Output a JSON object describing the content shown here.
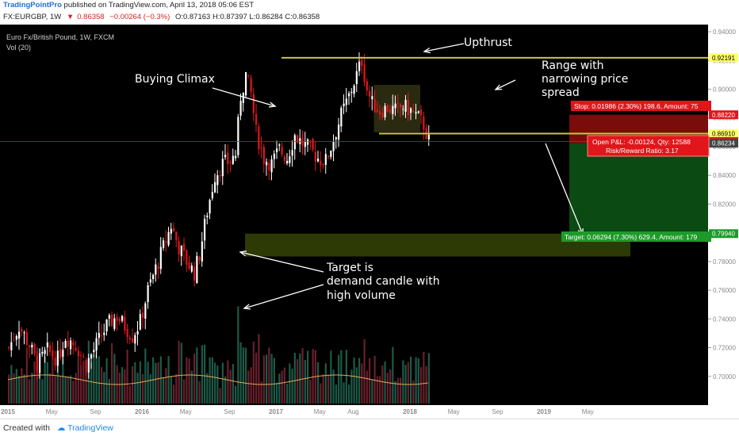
{
  "header": {
    "brand": "TradingPointPro",
    "published": "published on TradingView.com, April 13, 2018 05:06 EST",
    "symbol_line": "FX:EURGBP, 1W",
    "last": "0.86358",
    "change": "−0.00264 (−0.3%)",
    "ohlc": "O:0.87163 H:0.87397 L:0.86284 C:0.86358"
  },
  "footer": {
    "created_with": "Created with",
    "brand": "TradingView"
  },
  "legend": {
    "title": "Euro Fx/British Pound, 1W, FXCM",
    "vol": "Vol (20)"
  },
  "annotations": {
    "upthrust": "Upthrust",
    "buying_climax": "Buying Climax",
    "range": [
      "Range with",
      "narrowing price",
      "spread"
    ],
    "target": [
      "Target is",
      "demand candle with",
      "high volume"
    ]
  },
  "position": {
    "stop": "Stop: 0.01986 (2.30%) 198.6, Amount: 75",
    "pnl": "Open P&L: -0.00124, Qty: 12588",
    "rr": "Risk/Reward Ratio: 3.17",
    "target": "Target: 0.06294 (7.30%) 629.4, Amount: 179"
  },
  "colors": {
    "up": "#ffffff",
    "down": "#e0161b",
    "level": "#c8c83c",
    "stop_zone": "#7a0c0c",
    "target_zone": "#0b4a12",
    "vol_up": "#1d5a48",
    "vol_down": "#6a1f2c"
  },
  "chart_data": {
    "type": "candlestick",
    "price_axis": {
      "range": [
        0.68,
        0.945
      ],
      "ticks": [
        "0.94000",
        "0.92000",
        "0.90000",
        "0.88000",
        "0.86000",
        "0.84000",
        "0.82000",
        "0.80000",
        "0.78000",
        "0.76000",
        "0.74000",
        "0.72000",
        "0.70000"
      ],
      "tick_values": [
        0.94,
        0.92,
        0.9,
        0.88,
        0.86,
        0.84,
        0.82,
        0.8,
        0.78,
        0.76,
        0.74,
        0.72,
        0.7
      ]
    },
    "time_axis": {
      "labels": [
        "2015",
        "May",
        "Sep",
        "2016",
        "May",
        "Sep",
        "2017",
        "May",
        "Aug",
        "2018",
        "May",
        "Sep",
        "2019",
        "May"
      ],
      "positions": [
        0,
        17,
        34,
        52,
        69,
        86,
        104,
        121,
        134,
        156,
        173,
        190,
        208,
        225
      ]
    },
    "price_tags": [
      {
        "label": "0.92191",
        "value": 0.92191,
        "kind": "level"
      },
      {
        "label": "0.88220",
        "value": 0.8822,
        "kind": "stop"
      },
      {
        "label": "0.86910",
        "value": 0.8691,
        "kind": "level"
      },
      {
        "label": "0.86358",
        "value": 0.86358,
        "kind": "last"
      },
      {
        "label": "0.86234",
        "value": 0.86234,
        "kind": "entry"
      },
      {
        "label": "0.79940",
        "value": 0.7994,
        "kind": "target"
      }
    ],
    "levels": {
      "upthrust_high": 0.92191,
      "range_support": 0.8691,
      "entry": 0.86234,
      "stop": 0.8822,
      "target": 0.7994,
      "target_zone_low": 0.7835,
      "range_box": [
        0.87,
        0.903
      ]
    },
    "price_path": [
      [
        0,
        0.72
      ],
      [
        4,
        0.735
      ],
      [
        8,
        0.722
      ],
      [
        11,
        0.708
      ],
      [
        15,
        0.718
      ],
      [
        19,
        0.712
      ],
      [
        22,
        0.728
      ],
      [
        26,
        0.722
      ],
      [
        30,
        0.708
      ],
      [
        34,
        0.722
      ],
      [
        38,
        0.735
      ],
      [
        42,
        0.742
      ],
      [
        45,
        0.735
      ],
      [
        48,
        0.728
      ],
      [
        51,
        0.738
      ],
      [
        54,
        0.76
      ],
      [
        57,
        0.775
      ],
      [
        60,
        0.79
      ],
      [
        63,
        0.805
      ],
      [
        66,
        0.79
      ],
      [
        69,
        0.78
      ],
      [
        72,
        0.772
      ],
      [
        74,
        0.785
      ],
      [
        77,
        0.815
      ],
      [
        80,
        0.84
      ],
      [
        83,
        0.848
      ],
      [
        86,
        0.85
      ],
      [
        88,
        0.855
      ],
      [
        90,
        0.895
      ],
      [
        92,
        0.91
      ],
      [
        94,
        0.897
      ],
      [
        96,
        0.87
      ],
      [
        99,
        0.852
      ],
      [
        102,
        0.848
      ],
      [
        105,
        0.858
      ],
      [
        108,
        0.852
      ],
      [
        111,
        0.868
      ],
      [
        114,
        0.862
      ],
      [
        117,
        0.858
      ],
      [
        120,
        0.852
      ],
      [
        123,
        0.85
      ],
      [
        126,
        0.865
      ],
      [
        129,
        0.882
      ],
      [
        132,
        0.895
      ],
      [
        135,
        0.91
      ],
      [
        137,
        0.92
      ],
      [
        139,
        0.9
      ],
      [
        141,
        0.89
      ],
      [
        144,
        0.885
      ],
      [
        147,
        0.887
      ],
      [
        150,
        0.885
      ],
      [
        153,
        0.888
      ],
      [
        156,
        0.885
      ],
      [
        159,
        0.88
      ],
      [
        161,
        0.875
      ],
      [
        163,
        0.864
      ]
    ],
    "volume": {
      "ma_period": 20
    }
  }
}
